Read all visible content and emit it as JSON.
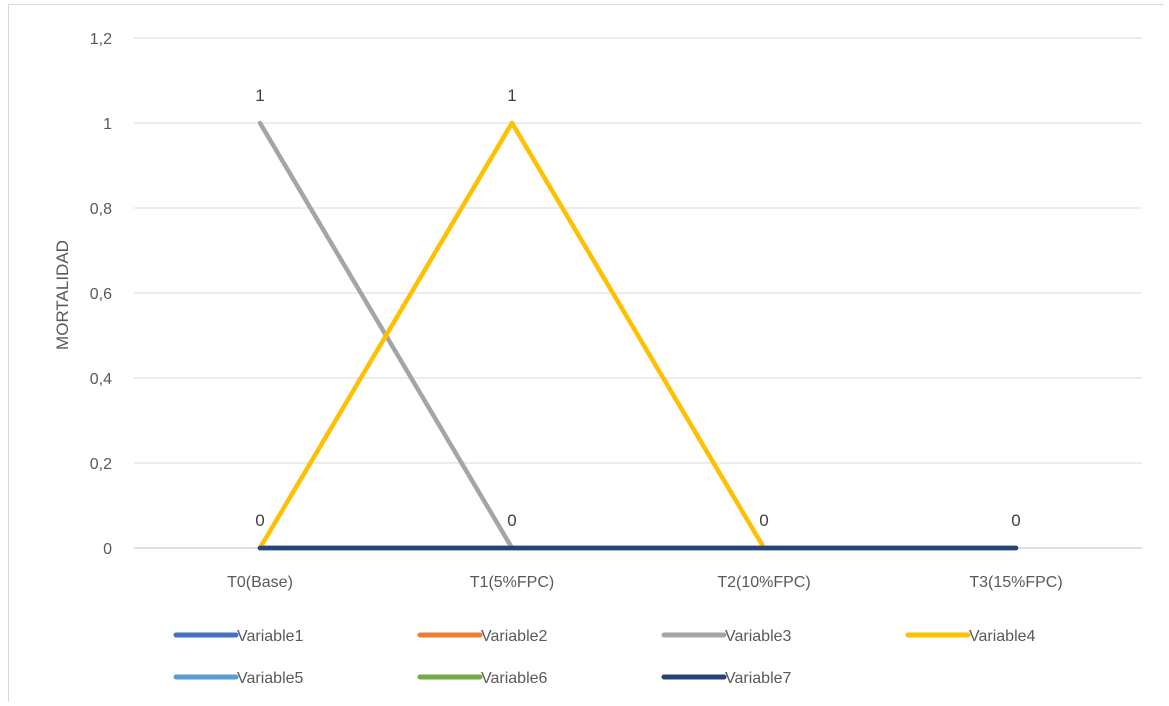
{
  "chart_data": {
    "type": "line",
    "title": "",
    "xlabel": "",
    "ylabel": "MORTALIDAD",
    "categories": [
      "T0(Base)",
      "T1(5%FPC)",
      "T2(10%FPC)",
      "T3(15%FPC)"
    ],
    "ylim": [
      0,
      1.2
    ],
    "yticks": [
      "0",
      "0,2",
      "0,4",
      "0,6",
      "0,8",
      "1",
      "1,2"
    ],
    "grid": true,
    "legend_position": "bottom",
    "series": [
      {
        "name": "Variable1",
        "color": "#4472c4",
        "values": [
          0,
          0,
          0,
          0
        ],
        "labels": [
          null,
          null,
          null,
          null
        ]
      },
      {
        "name": "Variable2",
        "color": "#ed7d31",
        "values": [
          0,
          0,
          0,
          0
        ],
        "labels": [
          null,
          null,
          null,
          null
        ]
      },
      {
        "name": "Variable3",
        "color": "#a5a5a5",
        "values": [
          1,
          0,
          null,
          null
        ],
        "labels": [
          "1",
          "0",
          null,
          null
        ]
      },
      {
        "name": "Variable4",
        "color": "#ffc000",
        "values": [
          0,
          1,
          0,
          null
        ],
        "labels": [
          "0",
          "1",
          "0",
          null
        ]
      },
      {
        "name": "Variable5",
        "color": "#5b9bd5",
        "values": [
          0,
          0,
          0,
          0
        ],
        "labels": [
          null,
          null,
          null,
          null
        ]
      },
      {
        "name": "Variable6",
        "color": "#70ad47",
        "values": [
          0,
          0,
          0,
          0
        ],
        "labels": [
          null,
          null,
          null,
          null
        ]
      },
      {
        "name": "Variable7",
        "color": "#264478",
        "values": [
          0,
          0,
          0,
          0
        ],
        "labels": [
          null,
          null,
          null,
          "0"
        ]
      }
    ]
  }
}
